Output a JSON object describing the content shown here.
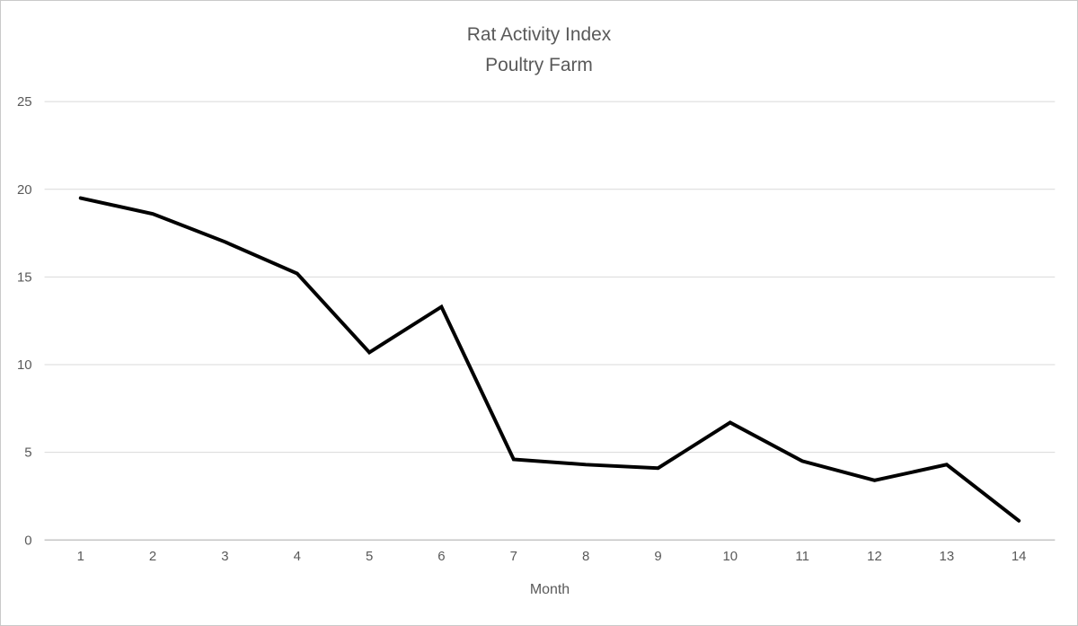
{
  "page": {
    "background": "#ffffff",
    "border_color": "#c9c9c9"
  },
  "chart_data": {
    "type": "line",
    "title": "Rat Activity Index",
    "subtitle": "Poultry Farm",
    "xlabel": "Month",
    "ylabel": "",
    "x": [
      1,
      2,
      3,
      4,
      5,
      6,
      7,
      8,
      9,
      10,
      11,
      12,
      13,
      14
    ],
    "values": [
      19.5,
      18.6,
      17.0,
      15.2,
      10.7,
      13.3,
      4.6,
      4.3,
      4.1,
      6.7,
      4.5,
      3.4,
      4.3,
      1.1
    ],
    "ylim": [
      0,
      25
    ],
    "yticks": [
      0,
      5,
      10,
      15,
      20,
      25
    ],
    "grid": true,
    "legend": "none",
    "series_name": "Rat Activity Index",
    "series_color": "#000000",
    "series_width": 4,
    "gridline_color": "#d9d9d9",
    "axis_line_color": "#c6c6c6",
    "text_color": "#595959"
  }
}
